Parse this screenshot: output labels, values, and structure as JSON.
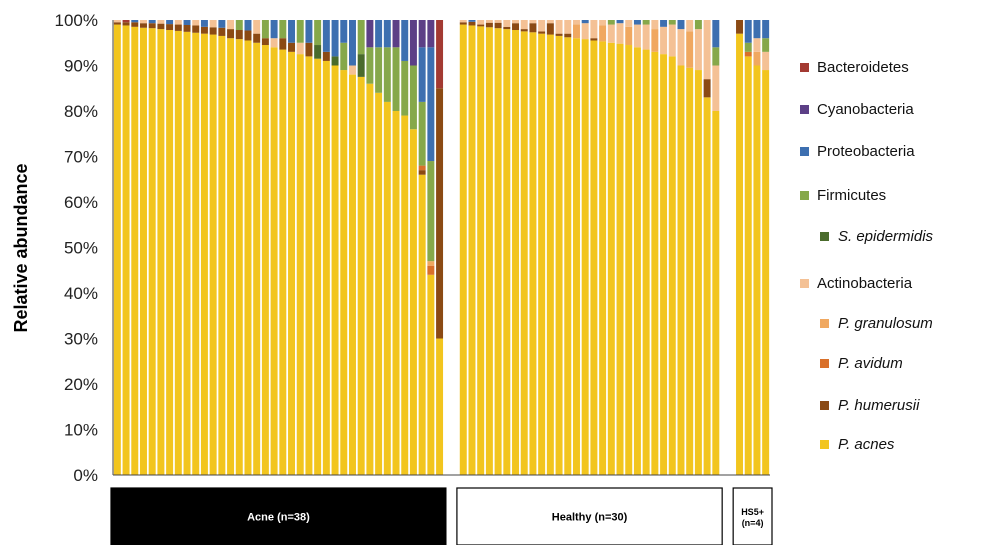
{
  "chart_data": {
    "type": "bar",
    "stacked": true,
    "ylabel": "Relative abundance",
    "ylim": [
      0,
      100
    ],
    "yticks": [
      "0%",
      "10%",
      "20%",
      "30%",
      "40%",
      "50%",
      "60%",
      "70%",
      "80%",
      "90%",
      "100%"
    ],
    "grid": false,
    "legend_position": "right",
    "stack_order": [
      "P. acnes",
      "P. humerusii",
      "P. avidum",
      "P. granulosum",
      "Actinobacteria",
      "S. epidermidis",
      "Firmicutes",
      "Proteobacteria",
      "Cyanobacteria",
      "Bacteroidetes"
    ],
    "legend": [
      {
        "label": "Bacteroidetes",
        "color": "#a33a32",
        "italic": false,
        "indent": false
      },
      {
        "label": "Cyanobacteria",
        "color": "#5c3f86",
        "italic": false,
        "indent": false
      },
      {
        "label": "Proteobacteria",
        "color": "#3d6fb0",
        "italic": false,
        "indent": false
      },
      {
        "label": "Firmicutes",
        "color": "#86a84a",
        "italic": false,
        "indent": false
      },
      {
        "label": "S. epidermidis",
        "color": "#4a6b2c",
        "italic": true,
        "indent": true
      },
      {
        "label": "Actinobacteria",
        "color": "#f4c195",
        "italic": false,
        "indent": false
      },
      {
        "label": "P. granulosum",
        "color": "#f0a860",
        "italic": true,
        "indent": true
      },
      {
        "label": "P. avidum",
        "color": "#d9702a",
        "italic": true,
        "indent": true
      },
      {
        "label": "P. humerusii",
        "color": "#8b4a14",
        "italic": true,
        "indent": true
      },
      {
        "label": "P. acnes",
        "color": "#f2c51e",
        "italic": true,
        "indent": true
      }
    ],
    "groups": [
      {
        "label": "Acne (n=38)",
        "label_lines": [
          "Acne (n=38)"
        ],
        "box_style": "filled",
        "samples": [
          {
            "P. acnes": 99.0,
            "P. humerusii": 0.5,
            "Actinobacteria": 0.5
          },
          {
            "P. acnes": 98.8,
            "P. humerusii": 0.7,
            "Bacteroidetes": 0.5
          },
          {
            "P. acnes": 98.5,
            "P. humerusii": 1.0,
            "Proteobacteria": 0.5
          },
          {
            "P. acnes": 98.3,
            "P. humerusii": 1.0,
            "Actinobacteria": 0.7
          },
          {
            "P. acnes": 98.2,
            "P. humerusii": 1.1,
            "Proteobacteria": 0.7
          },
          {
            "P. acnes": 98.0,
            "P. humerusii": 1.2,
            "Actinobacteria": 0.8
          },
          {
            "P. acnes": 97.8,
            "P. humerusii": 1.3,
            "Proteobacteria": 0.9
          },
          {
            "P. acnes": 97.6,
            "P. humerusii": 1.4,
            "Actinobacteria": 1.0
          },
          {
            "P. acnes": 97.4,
            "P. humerusii": 1.5,
            "Proteobacteria": 1.1
          },
          {
            "P. acnes": 97.2,
            "P. humerusii": 1.6,
            "Actinobacteria": 1.2
          },
          {
            "P. acnes": 97.0,
            "P. humerusii": 1.5,
            "Proteobacteria": 1.5
          },
          {
            "P. acnes": 96.8,
            "P. humerusii": 1.6,
            "Actinobacteria": 1.6
          },
          {
            "P. acnes": 96.5,
            "P. humerusii": 1.8,
            "Proteobacteria": 1.7
          },
          {
            "P. acnes": 96.0,
            "P. humerusii": 2.0,
            "Actinobacteria": 2.0
          },
          {
            "P. acnes": 95.8,
            "P. humerusii": 2.0,
            "Firmicutes": 2.2
          },
          {
            "P. acnes": 95.5,
            "P. humerusii": 2.2,
            "Proteobacteria": 2.3
          },
          {
            "P. acnes": 95.0,
            "P. humerusii": 2.0,
            "Actinobacteria": 3.0
          },
          {
            "P. acnes": 94.5,
            "P. humerusii": 1.5,
            "Firmicutes": 4.0
          },
          {
            "P. acnes": 94.0,
            "Actinobacteria": 2.0,
            "Proteobacteria": 4.0
          },
          {
            "P. acnes": 93.5,
            "P. humerusii": 2.5,
            "Firmicutes": 4.0
          },
          {
            "P. acnes": 93.0,
            "P. humerusii": 2.0,
            "Proteobacteria": 5.0
          },
          {
            "P. acnes": 92.5,
            "Actinobacteria": 2.5,
            "Firmicutes": 5.0
          },
          {
            "P. acnes": 92.0,
            "P. humerusii": 3.0,
            "Proteobacteria": 5.0
          },
          {
            "P. acnes": 91.5,
            "S. epidermidis": 3.0,
            "Firmicutes": 5.5
          },
          {
            "P. acnes": 91.0,
            "P. humerusii": 2.0,
            "Proteobacteria": 7.0
          },
          {
            "P. acnes": 90.0,
            "S. epidermidis": 2.0,
            "Proteobacteria": 8.0
          },
          {
            "P. acnes": 89.0,
            "Firmicutes": 6.0,
            "Proteobacteria": 5.0
          },
          {
            "P. acnes": 88.0,
            "Actinobacteria": 2.0,
            "Proteobacteria": 10.0
          },
          {
            "P. acnes": 87.5,
            "S. epidermidis": 5.0,
            "Firmicutes": 7.5
          },
          {
            "P. acnes": 86.0,
            "Firmicutes": 8.0,
            "Cyanobacteria": 6.0
          },
          {
            "P. acnes": 84.0,
            "Firmicutes": 10.0,
            "Proteobacteria": 6.0
          },
          {
            "P. acnes": 82.0,
            "Firmicutes": 12.0,
            "Proteobacteria": 6.0
          },
          {
            "P. acnes": 80.0,
            "Firmicutes": 14.0,
            "Cyanobacteria": 6.0
          },
          {
            "P. acnes": 79.0,
            "Firmicutes": 12.0,
            "Proteobacteria": 9.0
          },
          {
            "P. acnes": 76.0,
            "Firmicutes": 14.0,
            "Cyanobacteria": 10.0
          },
          {
            "P. acnes": 66.0,
            "P. humerusii": 1.0,
            "P. avidum": 1.0,
            "Firmicutes": 14.0,
            "Proteobacteria": 12.0,
            "Cyanobacteria": 6.0
          },
          {
            "P. acnes": 44.0,
            "P. avidum": 2.0,
            "P. granulosum": 1.0,
            "Firmicutes": 22.0,
            "Proteobacteria": 25.0,
            "Cyanobacteria": 6.0
          },
          {
            "P. acnes": 30.0,
            "P. humerusii": 55.0,
            "Bacteroidetes": 15.0
          }
        ]
      },
      {
        "label": "Healthy (n=30)",
        "label_lines": [
          "Healthy (n=30)"
        ],
        "box_style": "outline",
        "samples": [
          {
            "P. acnes": 99.0,
            "P. humerusii": 0.5,
            "Actinobacteria": 0.5
          },
          {
            "P. acnes": 98.8,
            "P. humerusii": 0.8,
            "Proteobacteria": 0.4
          },
          {
            "P. acnes": 98.6,
            "Actinobacteria": 1.0,
            "P. humerusii": 0.4
          },
          {
            "P. acnes": 98.4,
            "P. humerusii": 1.0,
            "Actinobacteria": 0.6
          },
          {
            "P. acnes": 98.2,
            "P. humerusii": 1.2,
            "Actinobacteria": 0.6
          },
          {
            "P. acnes": 98.0,
            "Actinobacteria": 1.5,
            "P. humerusii": 0.5
          },
          {
            "P. acnes": 97.8,
            "P. humerusii": 1.5,
            "Actinobacteria": 0.7
          },
          {
            "P. acnes": 97.5,
            "Actinobacteria": 2.0,
            "P. humerusii": 0.5
          },
          {
            "P. acnes": 97.3,
            "P. humerusii": 2.0,
            "Actinobacteria": 0.7
          },
          {
            "P. acnes": 97.0,
            "Actinobacteria": 2.5,
            "P. humerusii": 0.5
          },
          {
            "P. acnes": 96.8,
            "P. humerusii": 2.5,
            "Actinobacteria": 0.7
          },
          {
            "P. acnes": 96.5,
            "Actinobacteria": 3.0,
            "P. humerusii": 0.5
          },
          {
            "P. acnes": 96.2,
            "Actinobacteria": 3.0,
            "P. humerusii": 0.8
          },
          {
            "P. acnes": 96.0,
            "P. granulosum": 3.0,
            "Actinobacteria": 1.0
          },
          {
            "P. acnes": 95.8,
            "Actinobacteria": 3.5,
            "Proteobacteria": 0.7
          },
          {
            "P. acnes": 95.5,
            "Actinobacteria": 4.0,
            "P. humerusii": 0.5
          },
          {
            "P. acnes": 95.3,
            "P. granulosum": 3.5,
            "Actinobacteria": 1.2
          },
          {
            "P. acnes": 95.0,
            "Actinobacteria": 4.0,
            "Firmicutes": 1.0
          },
          {
            "P. acnes": 94.8,
            "Actinobacteria": 4.5,
            "Proteobacteria": 0.7
          },
          {
            "P. acnes": 94.5,
            "P. granulosum": 4.0,
            "Actinobacteria": 1.5
          },
          {
            "P. acnes": 94.0,
            "Actinobacteria": 5.0,
            "Proteobacteria": 1.0
          },
          {
            "P. acnes": 93.5,
            "Actinobacteria": 5.5,
            "Firmicutes": 1.0
          },
          {
            "P. acnes": 93.0,
            "P. granulosum": 5.0,
            "Actinobacteria": 2.0
          },
          {
            "P. acnes": 92.5,
            "Actinobacteria": 6.0,
            "Proteobacteria": 1.5
          },
          {
            "P. acnes": 92.0,
            "Actinobacteria": 7.0,
            "Firmicutes": 1.0
          },
          {
            "P. acnes": 90.0,
            "Actinobacteria": 8.0,
            "Proteobacteria": 2.0
          },
          {
            "P. acnes": 89.5,
            "P. granulosum": 8.0,
            "Actinobacteria": 2.5
          },
          {
            "P. acnes": 89.0,
            "Actinobacteria": 9.0,
            "Firmicutes": 2.0
          },
          {
            "P. acnes": 83.0,
            "P. humerusii": 4.0,
            "Actinobacteria": 13.0
          },
          {
            "P. acnes": 80.0,
            "Actinobacteria": 10.0,
            "Firmicutes": 4.0,
            "Proteobacteria": 6.0
          }
        ]
      },
      {
        "label": "HS5+ (n=4)",
        "label_lines": [
          "HS5+",
          "(n=4)"
        ],
        "box_style": "outline",
        "samples": [
          {
            "P. acnes": 97.0,
            "P. humerusii": 3.0
          },
          {
            "P. acnes": 92.0,
            "P. avidum": 1.0,
            "Firmicutes": 2.0,
            "Proteobacteria": 5.0
          },
          {
            "P. acnes": 90.0,
            "P. granulosum": 3.0,
            "Actinobacteria": 3.0,
            "Proteobacteria": 4.0
          },
          {
            "P. acnes": 89.0,
            "Actinobacteria": 4.0,
            "Firmicutes": 3.0,
            "Proteobacteria": 4.0
          }
        ]
      }
    ]
  }
}
